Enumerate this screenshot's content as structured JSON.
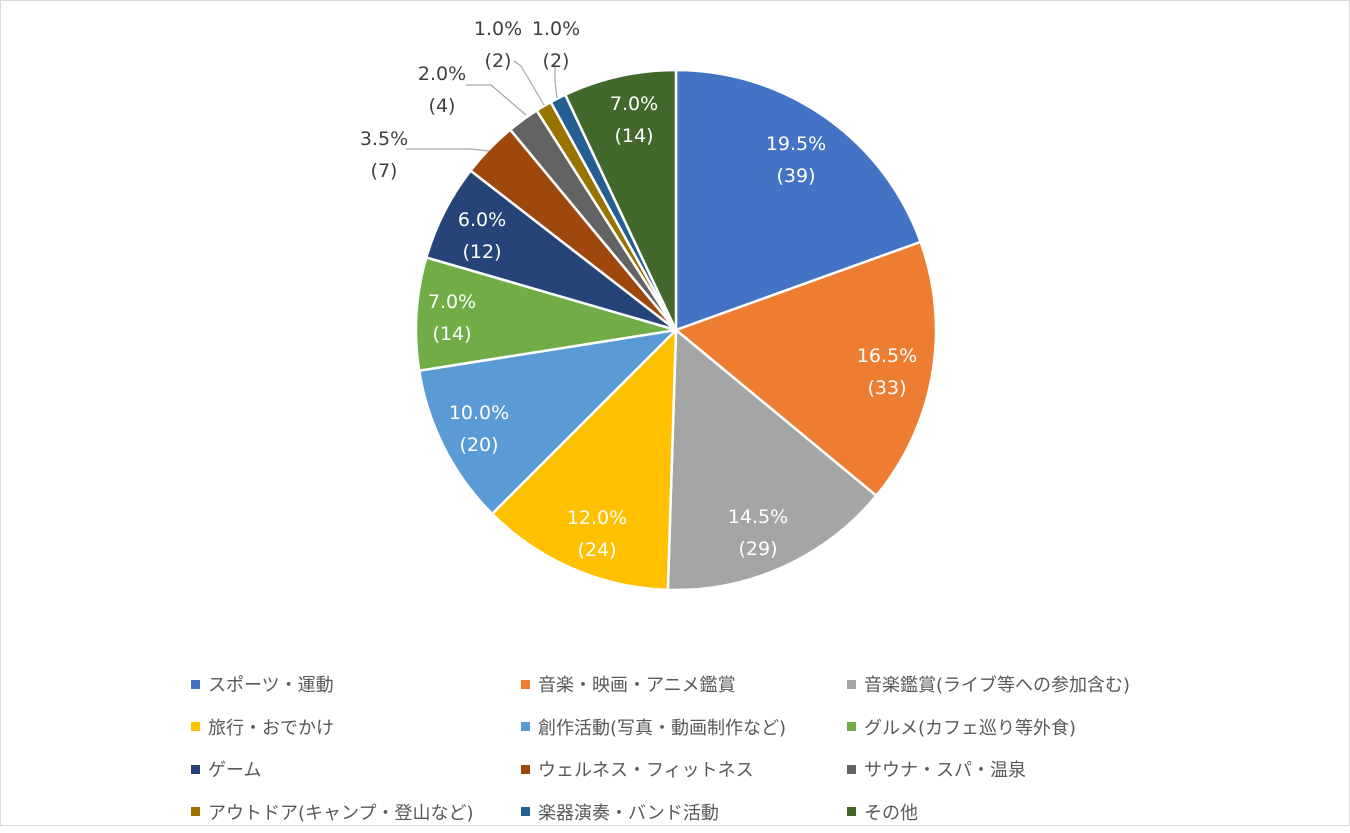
{
  "chart_data": {
    "type": "pie",
    "categories": [
      "スポーツ・運動",
      "音楽・映画・アニメ鑑賞",
      "音楽鑑賞(ライブ等への参加含む)",
      "旅行・おでかけ",
      "創作活動(写真・動画制作など)",
      "グルメ(カフェ巡り等外食)",
      "ゲーム",
      "ウェルネス・フィットネス",
      "サウナ・スパ・温泉",
      "アウトドア(キャンプ・登山など)",
      "楽器演奏・バンド活動",
      "その他"
    ],
    "values": [
      39,
      33,
      29,
      24,
      20,
      14,
      12,
      7,
      4,
      2,
      2,
      14
    ],
    "percent_labels": [
      "19.5%",
      "16.5%",
      "14.5%",
      "12.0%",
      "10.0%",
      "7.0%",
      "6.0%",
      "3.5%",
      "2.0%",
      "1.0%",
      "1.0%",
      "7.0%"
    ],
    "count_labels": [
      "(39)",
      "(33)",
      "(29)",
      "(24)",
      "(20)",
      "(14)",
      "(12)",
      "(7)",
      "(4)",
      "(2)",
      "(2)",
      "(14)"
    ],
    "colors": [
      "#4472C4",
      "#ED7D31",
      "#A5A5A5",
      "#FFC000",
      "#5B9BD5",
      "#70AD47",
      "#264478",
      "#9E480E",
      "#636363",
      "#997300",
      "#255E91",
      "#43682B"
    ],
    "label_colors": [
      "#ffffff",
      "#ffffff",
      "#ffffff",
      "#ffffff",
      "#ffffff",
      "#ffffff",
      "#ffffff",
      "#404040",
      "#404040",
      "#404040",
      "#404040",
      "#ffffff"
    ],
    "legend_position": "bottom"
  }
}
